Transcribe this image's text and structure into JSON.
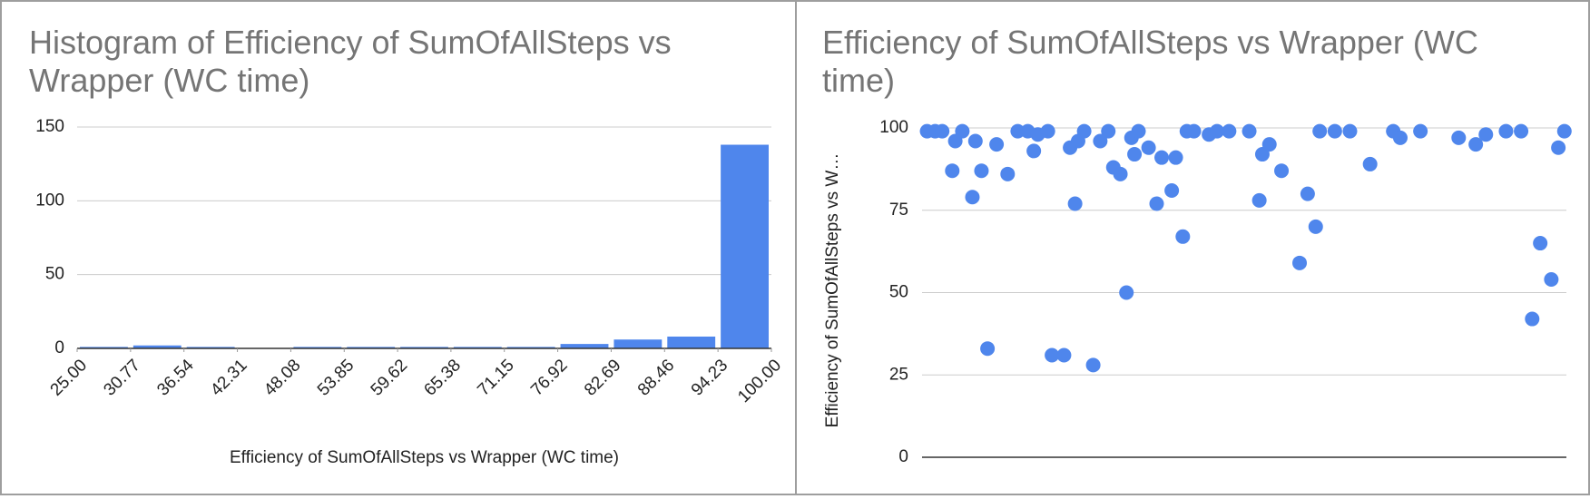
{
  "chart_data": [
    {
      "type": "histogram",
      "title": "Histogram of Efficiency of SumOfAllSteps vs Wrapper (WC time)",
      "x_label": "Efficiency of SumOfAllSteps vs Wrapper (WC time)",
      "bins": [
        25,
        30.77,
        36.54,
        42.31,
        48.08,
        53.85,
        59.62,
        65.38,
        71.15,
        76.92,
        82.69,
        88.46,
        94.23,
        100
      ],
      "values": [
        1,
        2,
        1,
        0,
        1,
        1,
        1,
        1,
        1,
        3,
        6,
        8,
        138
      ],
      "color": "#4f86ec",
      "xlim": [
        25,
        100
      ],
      "xticks": [
        {
          "value": 25,
          "label": "25.00"
        },
        {
          "value": 30.77,
          "label": "30.77"
        },
        {
          "value": 36.54,
          "label": "36.54"
        },
        {
          "value": 42.31,
          "label": "42.31"
        },
        {
          "value": 48.08,
          "label": "48.08"
        },
        {
          "value": 53.85,
          "label": "53.85"
        },
        {
          "value": 59.62,
          "label": "59.62"
        },
        {
          "value": 65.38,
          "label": "65.38"
        },
        {
          "value": 71.15,
          "label": "71.15"
        },
        {
          "value": 76.92,
          "label": "76.92"
        },
        {
          "value": 82.69,
          "label": "82.69"
        },
        {
          "value": 88.46,
          "label": "88.46"
        },
        {
          "value": 94.23,
          "label": "94.23"
        },
        {
          "value": 100,
          "label": "100.00"
        }
      ],
      "ylim": [
        0,
        150
      ],
      "yticks": [
        0,
        50,
        100,
        150
      ],
      "grid": true
    },
    {
      "type": "scatter",
      "title": "Efficiency of SumOfAllSteps vs Wrapper (WC time)",
      "y_label": "Efficiency of SumOfAllSteps vs W…",
      "color": "#4f86ec",
      "x": [
        5,
        13,
        20,
        30,
        33,
        40,
        50,
        53,
        59,
        65,
        74,
        85,
        95,
        105,
        111,
        115,
        125,
        129,
        141,
        147,
        152,
        155,
        161,
        170,
        177,
        185,
        190,
        197,
        203,
        208,
        211,
        215,
        225,
        233,
        238,
        248,
        252,
        259,
        263,
        270,
        285,
        293,
        305,
        325,
        335,
        338,
        345,
        357,
        375,
        383,
        391,
        395,
        410,
        425,
        445,
        468,
        475,
        495,
        533,
        550,
        560,
        580,
        595,
        606,
        614,
        625,
        632,
        638
      ],
      "values": [
        99,
        99,
        99,
        87,
        96,
        99,
        79,
        96,
        87,
        33,
        95,
        86,
        99,
        99,
        93,
        98,
        99,
        31,
        31,
        94,
        77,
        96,
        99,
        28,
        96,
        99,
        88,
        86,
        50,
        97,
        92,
        99,
        94,
        77,
        91,
        81,
        91,
        67,
        99,
        99,
        98,
        99,
        99,
        99,
        78,
        92,
        95,
        87,
        59,
        80,
        70,
        99,
        99,
        99,
        89,
        99,
        97,
        99,
        97,
        95,
        98,
        99,
        99,
        42,
        65,
        54,
        94,
        99
      ],
      "xlim": [
        0,
        640
      ],
      "ylim": [
        0,
        100
      ],
      "yticks": [
        0,
        25,
        50,
        75,
        100
      ],
      "grid": true
    }
  ]
}
